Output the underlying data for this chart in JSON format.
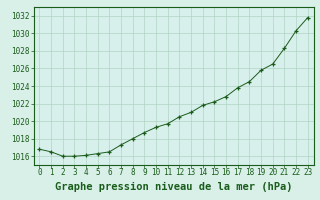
{
  "x": [
    0,
    1,
    2,
    3,
    4,
    5,
    6,
    7,
    8,
    9,
    10,
    11,
    12,
    13,
    14,
    15,
    16,
    17,
    18,
    19,
    20,
    21,
    22,
    23
  ],
  "y": [
    1016.8,
    1016.5,
    1016.0,
    1016.0,
    1016.1,
    1016.3,
    1016.5,
    1017.3,
    1018.0,
    1018.7,
    1019.3,
    1019.7,
    1020.5,
    1021.0,
    1021.8,
    1022.2,
    1022.8,
    1023.8,
    1024.5,
    1025.8,
    1026.5,
    1028.3,
    1030.3,
    1031.8
  ],
  "line_color": "#1a5c1a",
  "marker_color": "#1a5c1a",
  "bg_color": "#d8f0e8",
  "plot_bg_color": "#d8f0ec",
  "grid_color": "#b0d4c4",
  "title": "Graphe pression niveau de la mer (hPa)",
  "xlim": [
    -0.5,
    23.5
  ],
  "ylim": [
    1015.0,
    1033.0
  ],
  "yticks": [
    1016,
    1018,
    1020,
    1022,
    1024,
    1026,
    1028,
    1030,
    1032
  ],
  "xticks": [
    0,
    1,
    2,
    3,
    4,
    5,
    6,
    7,
    8,
    9,
    10,
    11,
    12,
    13,
    14,
    15,
    16,
    17,
    18,
    19,
    20,
    21,
    22,
    23
  ],
  "title_fontsize": 7.5,
  "tick_fontsize": 5.5
}
